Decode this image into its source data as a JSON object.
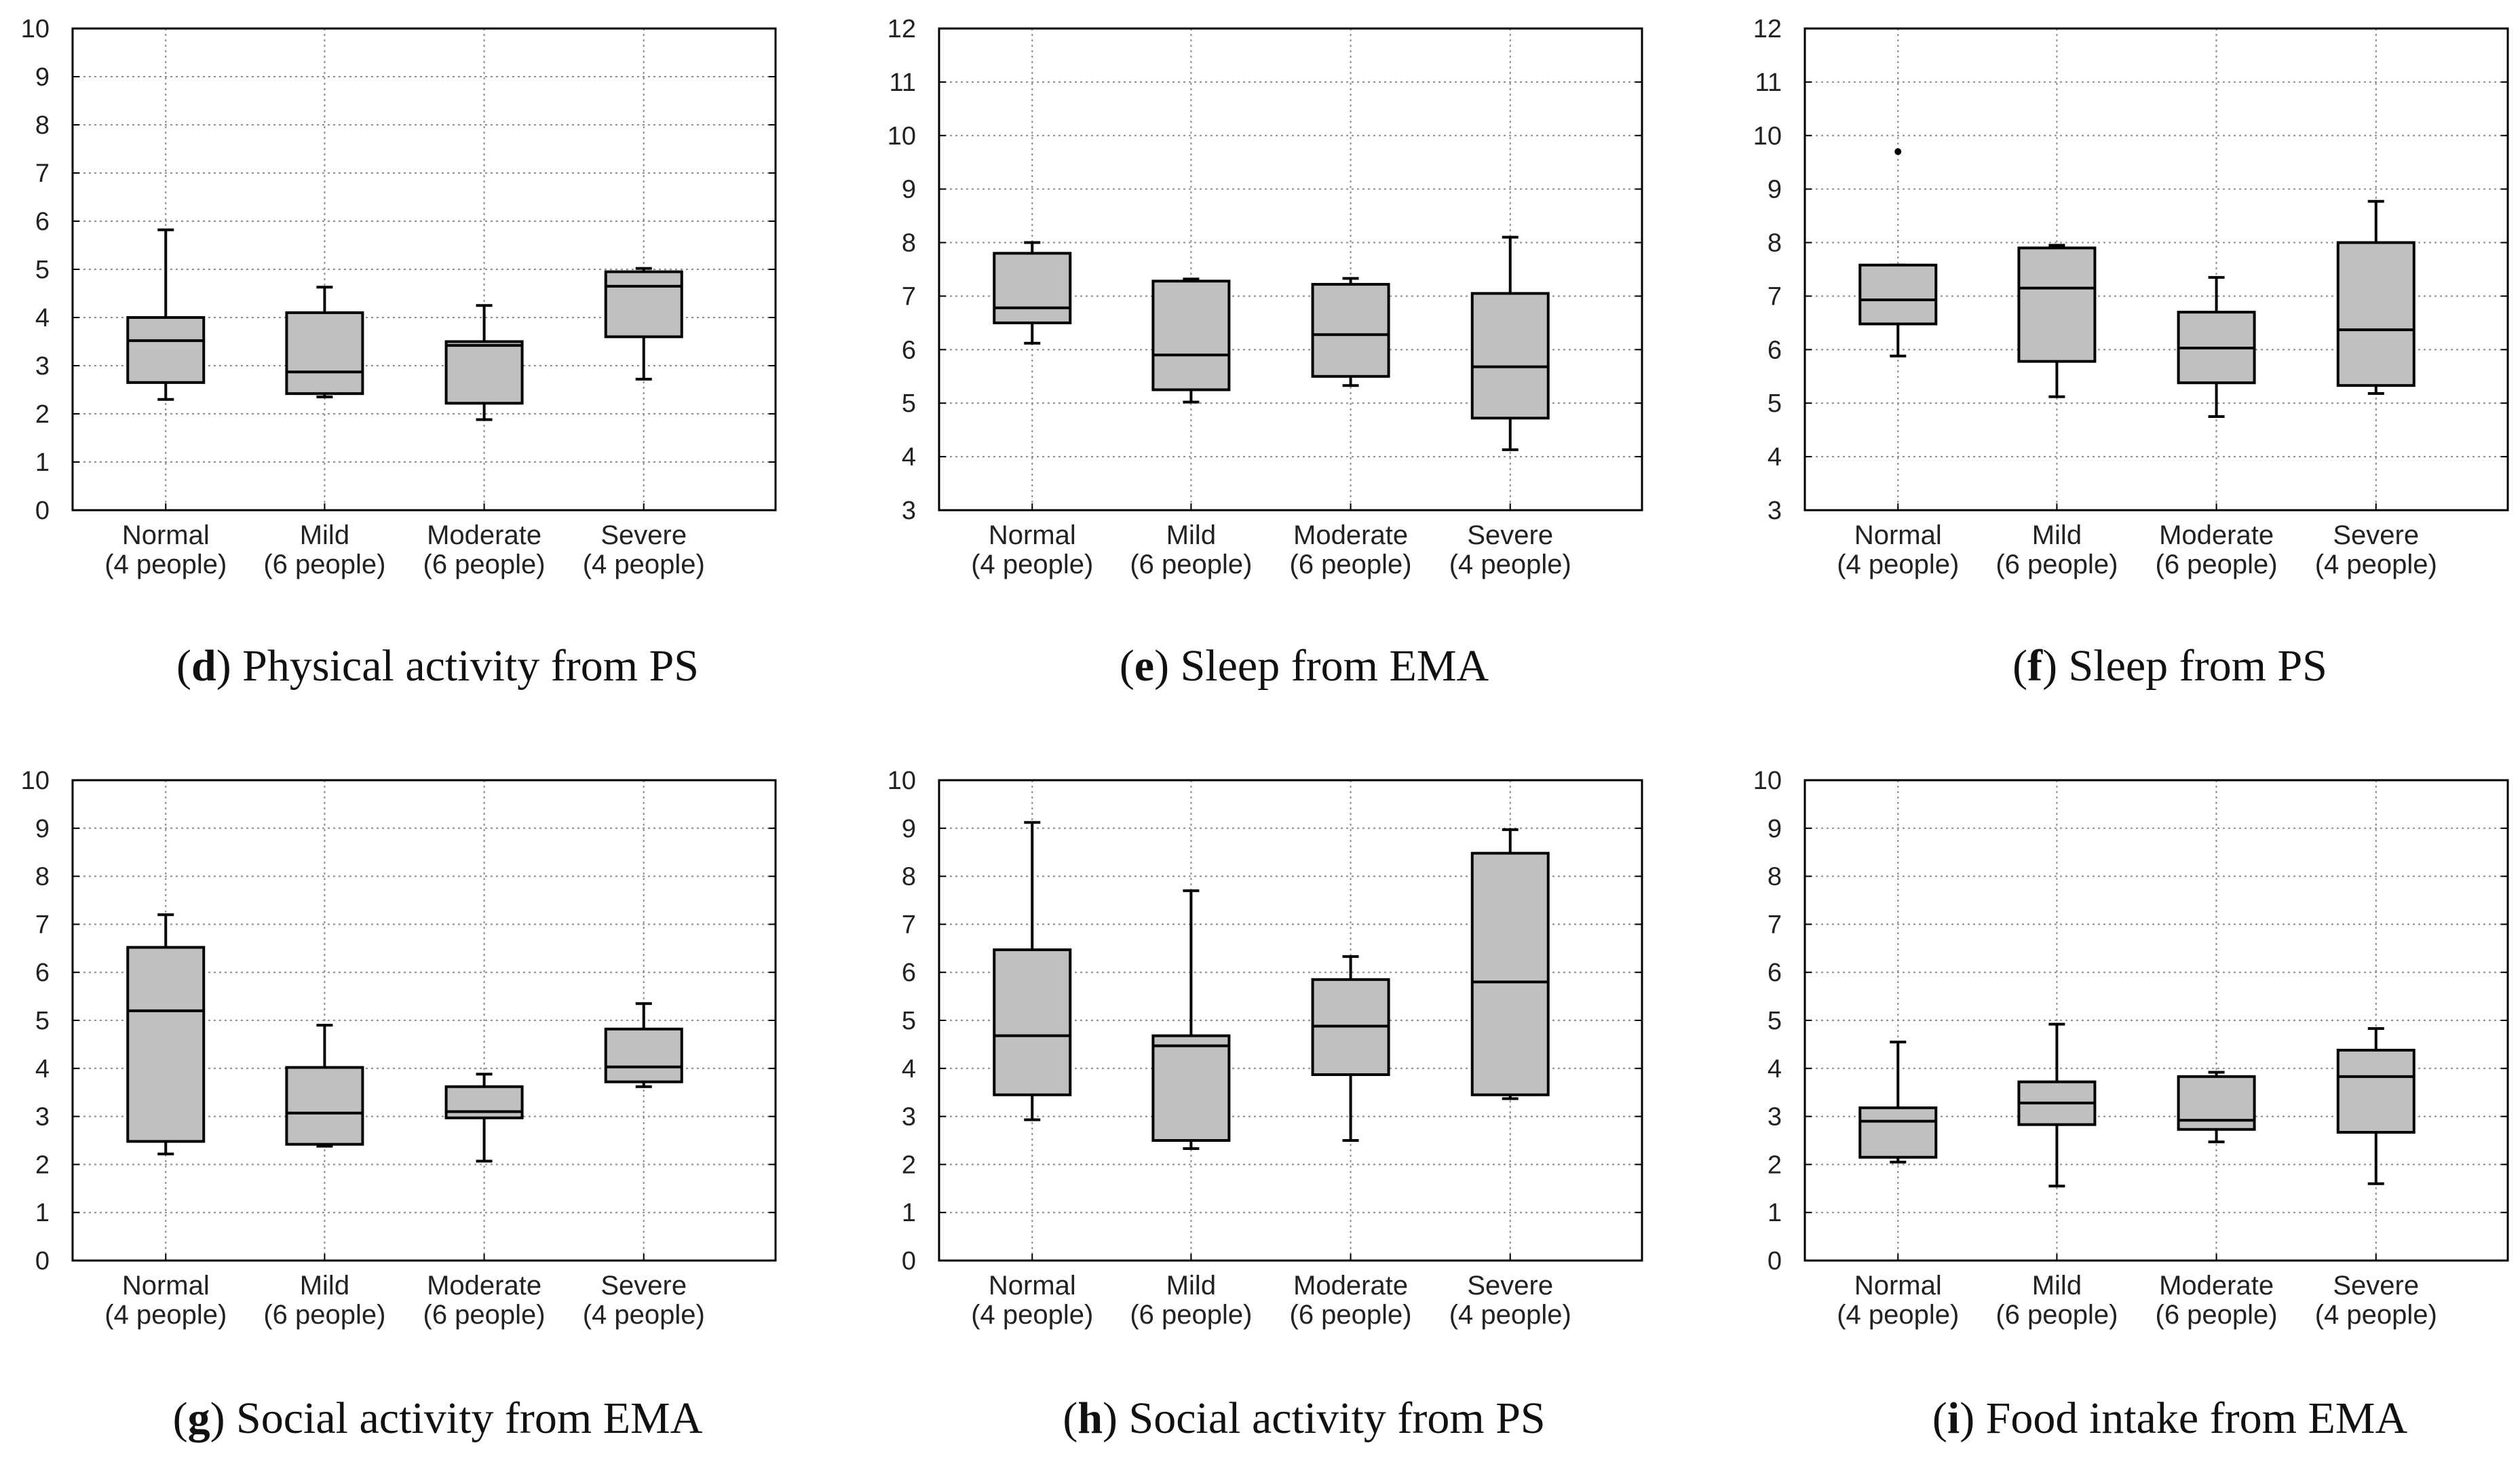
{
  "figure": {
    "colors": {
      "box_fill": "#c0c0c0",
      "stroke": "#000000",
      "grid": "#8c8c8c",
      "background": "#ffffff"
    },
    "categories": [
      {
        "name": "Normal",
        "count": "(4 people)"
      },
      {
        "name": "Mild",
        "count": "(6 people)"
      },
      {
        "name": "Moderate",
        "count": "(6 people)"
      },
      {
        "name": "Severe",
        "count": "(4 people)"
      }
    ]
  },
  "chart_data": [
    {
      "type": "box",
      "caption": {
        "letter": "d",
        "text": "Physical activity from PS"
      },
      "ylim": [
        0,
        10
      ],
      "yticks": [
        "0",
        "1",
        "2",
        "3",
        "4",
        "5",
        "6",
        "7",
        "8",
        "9",
        "10"
      ],
      "grid": true,
      "categories": [
        "Normal",
        "Mild",
        "Moderate",
        "Severe"
      ],
      "boxes": [
        {
          "min": 2.3,
          "q1": 2.65,
          "median": 3.52,
          "q3": 4.0,
          "max": 5.82
        },
        {
          "min": 2.35,
          "q1": 2.42,
          "median": 2.87,
          "q3": 4.1,
          "max": 4.63
        },
        {
          "min": 1.88,
          "q1": 2.22,
          "median": 3.42,
          "q3": 3.5,
          "max": 4.25
        },
        {
          "min": 2.72,
          "q1": 3.6,
          "median": 4.65,
          "q3": 4.95,
          "max": 5.02
        }
      ]
    },
    {
      "type": "box",
      "caption": {
        "letter": "e",
        "text": "Sleep from EMA"
      },
      "ylim": [
        3,
        12
      ],
      "yticks": [
        "3",
        "4",
        "5",
        "6",
        "7",
        "8",
        "9",
        "10",
        "11",
        "12"
      ],
      "grid": true,
      "categories": [
        "Normal",
        "Mild",
        "Moderate",
        "Severe"
      ],
      "boxes": [
        {
          "min": 6.12,
          "q1": 6.5,
          "median": 6.78,
          "q3": 7.8,
          "max": 8.0
        },
        {
          "min": 5.02,
          "q1": 5.25,
          "median": 5.9,
          "q3": 7.28,
          "max": 7.32
        },
        {
          "min": 5.33,
          "q1": 5.5,
          "median": 6.28,
          "q3": 7.22,
          "max": 7.33
        },
        {
          "min": 4.13,
          "q1": 4.72,
          "median": 5.68,
          "q3": 7.05,
          "max": 8.1
        }
      ]
    },
    {
      "type": "box",
      "caption": {
        "letter": "f",
        "text": "Sleep from PS"
      },
      "ylim": [
        3,
        12
      ],
      "yticks": [
        "3",
        "4",
        "5",
        "6",
        "7",
        "8",
        "9",
        "10",
        "11",
        "12"
      ],
      "grid": true,
      "categories": [
        "Normal",
        "Mild",
        "Moderate",
        "Severe"
      ],
      "boxes": [
        {
          "min": 5.88,
          "q1": 6.48,
          "median": 6.93,
          "q3": 7.58,
          "max": 7.58,
          "outliers": [
            9.7
          ]
        },
        {
          "min": 5.12,
          "q1": 5.78,
          "median": 7.15,
          "q3": 7.9,
          "max": 7.95
        },
        {
          "min": 4.75,
          "q1": 5.38,
          "median": 6.03,
          "q3": 6.7,
          "max": 7.35
        },
        {
          "min": 5.18,
          "q1": 5.33,
          "median": 6.37,
          "q3": 8.0,
          "max": 8.77
        }
      ]
    },
    {
      "type": "box",
      "caption": {
        "letter": "g",
        "text": "Social activity from EMA"
      },
      "ylim": [
        0,
        10
      ],
      "yticks": [
        "0",
        "1",
        "2",
        "3",
        "4",
        "5",
        "6",
        "7",
        "8",
        "9",
        "10"
      ],
      "grid": true,
      "categories": [
        "Normal",
        "Mild",
        "Moderate",
        "Severe"
      ],
      "boxes": [
        {
          "min": 2.22,
          "q1": 2.48,
          "median": 5.2,
          "q3": 6.52,
          "max": 7.2
        },
        {
          "min": 2.38,
          "q1": 2.42,
          "median": 3.07,
          "q3": 4.02,
          "max": 4.9
        },
        {
          "min": 2.07,
          "q1": 2.97,
          "median": 3.1,
          "q3": 3.62,
          "max": 3.88
        },
        {
          "min": 3.62,
          "q1": 3.72,
          "median": 4.03,
          "q3": 4.82,
          "max": 5.35
        }
      ]
    },
    {
      "type": "box",
      "caption": {
        "letter": "h",
        "text": "Social activity from PS"
      },
      "ylim": [
        0,
        10
      ],
      "yticks": [
        "0",
        "1",
        "2",
        "3",
        "4",
        "5",
        "6",
        "7",
        "8",
        "9",
        "10"
      ],
      "grid": true,
      "categories": [
        "Normal",
        "Mild",
        "Moderate",
        "Severe"
      ],
      "boxes": [
        {
          "min": 2.93,
          "q1": 3.45,
          "median": 4.68,
          "q3": 6.47,
          "max": 9.12
        },
        {
          "min": 2.33,
          "q1": 2.5,
          "median": 4.47,
          "q3": 4.68,
          "max": 7.7
        },
        {
          "min": 2.5,
          "q1": 3.87,
          "median": 4.88,
          "q3": 5.85,
          "max": 6.33
        },
        {
          "min": 3.37,
          "q1": 3.45,
          "median": 5.8,
          "q3": 8.48,
          "max": 8.97
        }
      ]
    },
    {
      "type": "box",
      "caption": {
        "letter": "i",
        "text": "Food intake from EMA"
      },
      "ylim": [
        0,
        10
      ],
      "yticks": [
        "0",
        "1",
        "2",
        "3",
        "4",
        "5",
        "6",
        "7",
        "8",
        "9",
        "10"
      ],
      "grid": true,
      "categories": [
        "Normal",
        "Mild",
        "Moderate",
        "Severe"
      ],
      "boxes": [
        {
          "min": 2.05,
          "q1": 2.15,
          "median": 2.9,
          "q3": 3.18,
          "max": 4.55
        },
        {
          "min": 1.55,
          "q1": 2.83,
          "median": 3.28,
          "q3": 3.72,
          "max": 4.92
        },
        {
          "min": 2.47,
          "q1": 2.73,
          "median": 2.92,
          "q3": 3.83,
          "max": 3.92
        },
        {
          "min": 1.6,
          "q1": 2.67,
          "median": 3.83,
          "q3": 4.38,
          "max": 4.83
        }
      ]
    }
  ]
}
